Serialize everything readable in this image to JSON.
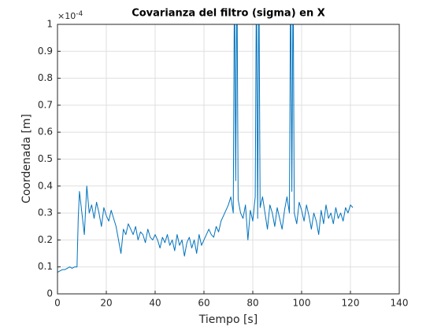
{
  "chart_data": {
    "type": "line",
    "title": "Covarianza del filtro (sigma) en X",
    "xlabel": "Tiempo [s]",
    "ylabel": "Coordenada [m]",
    "y_exponent": {
      "base": "×10",
      "power": "-4"
    },
    "color": "#0072bd",
    "grid": true,
    "xlim": [
      0,
      140
    ],
    "xticks": [
      0,
      20,
      40,
      60,
      80,
      100,
      120,
      140
    ],
    "ylim": [
      0,
      1
    ],
    "yticks": [
      0,
      0.1,
      0.2,
      0.3,
      0.4,
      0.5,
      0.6,
      0.7,
      0.8,
      0.9,
      1
    ],
    "x": [
      0,
      1,
      2,
      3,
      4,
      5,
      6,
      7,
      8,
      8.5,
      9,
      10,
      11,
      12,
      13,
      14,
      15,
      16,
      17,
      18,
      19,
      20,
      21,
      22,
      23,
      24,
      25,
      26,
      27,
      28,
      29,
      30,
      31,
      32,
      33,
      34,
      35,
      36,
      37,
      38,
      39,
      40,
      41,
      42,
      43,
      44,
      45,
      46,
      47,
      48,
      49,
      50,
      51,
      52,
      53,
      54,
      55,
      56,
      57,
      58,
      59,
      60,
      61,
      62,
      63,
      64,
      65,
      66,
      67,
      68,
      69,
      70,
      71,
      72,
      72.5,
      73,
      73.5,
      74,
      75,
      76,
      77,
      78,
      79,
      80,
      81,
      81.5,
      82,
      82.5,
      83,
      84,
      85,
      86,
      87,
      88,
      89,
      90,
      91,
      92,
      93,
      94,
      95,
      95.5,
      96,
      96.5,
      97,
      98,
      99,
      100,
      101,
      102,
      103,
      104,
      105,
      106,
      107,
      108,
      109,
      110,
      111,
      112,
      113,
      114,
      115,
      116,
      117,
      118,
      119,
      120,
      121
    ],
    "values": [
      0.08,
      0.085,
      0.09,
      0.09,
      0.095,
      0.1,
      0.095,
      0.1,
      0.1,
      0.28,
      0.38,
      0.3,
      0.22,
      0.4,
      0.3,
      0.33,
      0.28,
      0.34,
      0.3,
      0.25,
      0.32,
      0.29,
      0.27,
      0.31,
      0.28,
      0.25,
      0.2,
      0.15,
      0.24,
      0.22,
      0.26,
      0.24,
      0.22,
      0.25,
      0.2,
      0.23,
      0.22,
      0.19,
      0.24,
      0.21,
      0.2,
      0.22,
      0.2,
      0.17,
      0.21,
      0.19,
      0.22,
      0.18,
      0.2,
      0.16,
      0.22,
      0.18,
      0.2,
      0.14,
      0.19,
      0.21,
      0.17,
      0.2,
      0.15,
      0.22,
      0.18,
      0.2,
      0.22,
      0.24,
      0.22,
      0.21,
      0.25,
      0.23,
      0.27,
      0.29,
      0.31,
      0.33,
      0.36,
      0.3,
      1.2,
      0.42,
      1.2,
      0.35,
      0.3,
      0.28,
      0.33,
      0.2,
      0.31,
      0.27,
      0.36,
      1.2,
      0.28,
      1.2,
      0.32,
      0.36,
      0.3,
      0.24,
      0.33,
      0.3,
      0.25,
      0.32,
      0.28,
      0.24,
      0.31,
      0.36,
      0.3,
      1.2,
      0.38,
      1.2,
      0.3,
      0.26,
      0.34,
      0.31,
      0.27,
      0.33,
      0.29,
      0.24,
      0.3,
      0.27,
      0.22,
      0.31,
      0.26,
      0.33,
      0.28,
      0.3,
      0.26,
      0.32,
      0.28,
      0.3,
      0.27,
      0.32,
      0.3,
      0.33,
      0.32
    ]
  }
}
